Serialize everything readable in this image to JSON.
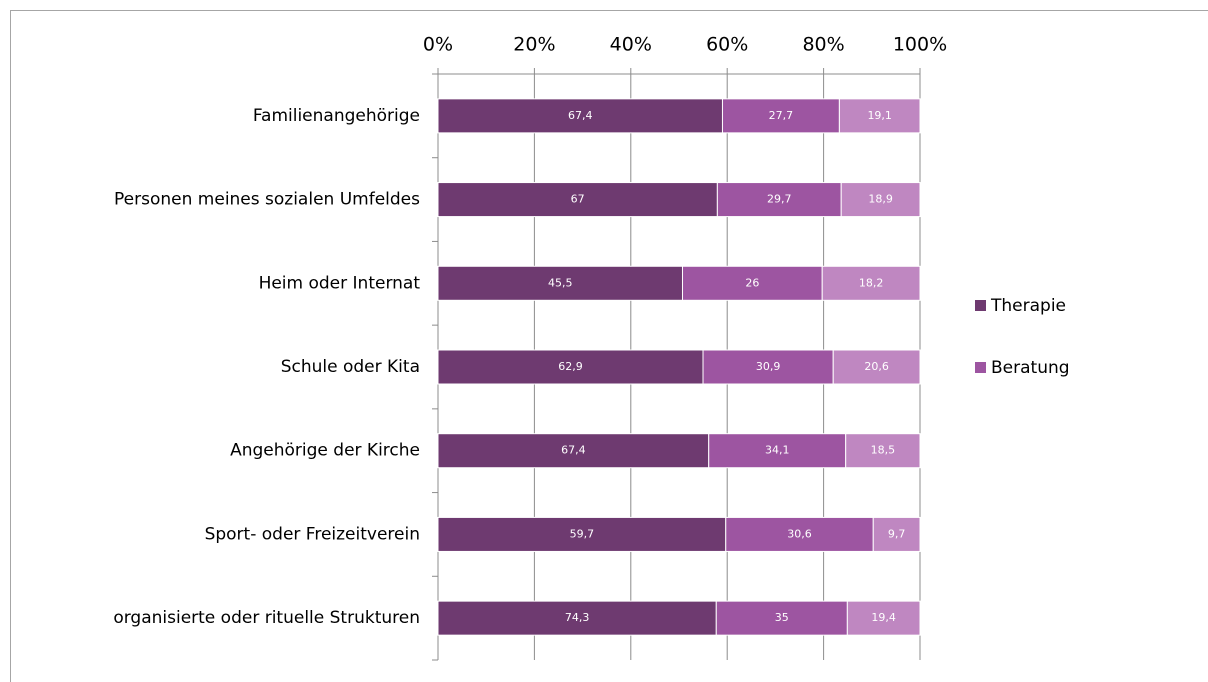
{
  "chart_data": {
    "type": "bar",
    "orientation": "horizontal",
    "stacking": "percent",
    "categories": [
      "Familienangehörige",
      "Personen meines sozialen Umfeldes",
      "Heim oder Internat",
      "Schule oder Kita",
      "Angehörige der Kirche",
      "Sport- oder Freizeitverein",
      "organisierte oder rituelle Strukturen"
    ],
    "series": [
      {
        "name": "Therapie",
        "color": "#6e3a70",
        "values": [
          67.4,
          67,
          45.5,
          62.9,
          67.4,
          59.7,
          74.3
        ],
        "value_labels": [
          "67,4",
          "67",
          "45,5",
          "62,9",
          "67,4",
          "59,7",
          "74,3"
        ]
      },
      {
        "name": "Beratung",
        "color": "#9d55a1",
        "values": [
          27.7,
          29.7,
          26,
          30.9,
          34.1,
          30.6,
          35
        ],
        "value_labels": [
          "27,7",
          "29,7",
          "26",
          "30,9",
          "34,1",
          "30,6",
          "35"
        ]
      },
      {
        "color": "#bf87c1",
        "values": [
          19.1,
          18.9,
          18.2,
          20.6,
          18.5,
          9.7,
          19.4
        ],
        "value_labels": [
          "19,1",
          "18,9",
          "18,2",
          "20,6",
          "18,5",
          "9,7",
          "19,4"
        ]
      }
    ],
    "xlim": [
      0,
      100
    ],
    "xticks": [
      {
        "value": 0,
        "label": "0%"
      },
      {
        "value": 20,
        "label": "20%"
      },
      {
        "value": 40,
        "label": "40%"
      },
      {
        "value": 60,
        "label": "60%"
      },
      {
        "value": 80,
        "label": "80%"
      },
      {
        "value": 100,
        "label": "100%"
      }
    ],
    "grid": true,
    "legend": "right"
  }
}
